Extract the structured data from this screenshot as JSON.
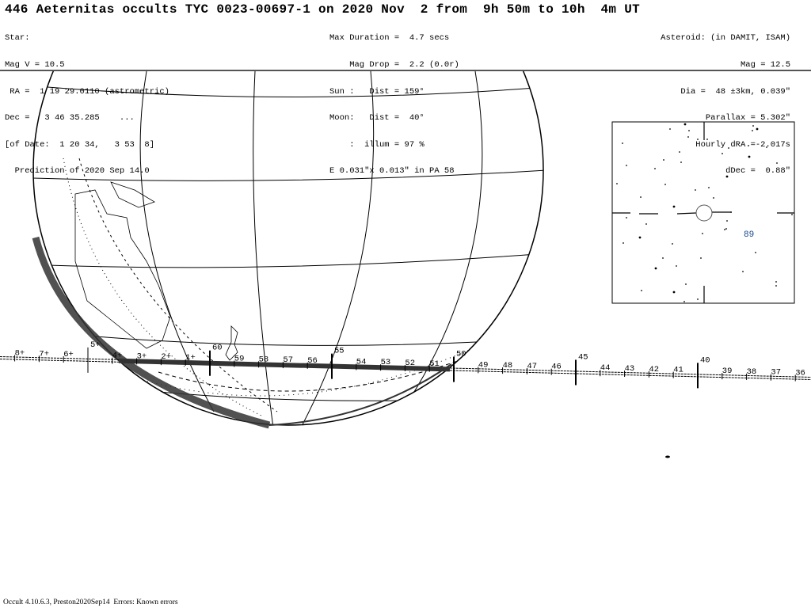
{
  "title": "446 Aeternitas occults TYC 0023-00697-1 on 2020 Nov  2 from  9h 50m to 10h  4m UT",
  "star": [
    "Star:",
    "Mag V = 10.5",
    " RA =  1 19 29.0110 (astrometric)",
    "Dec =   3 46 35.285    ...",
    "[of Date:  1 20 34,   3 53  8]",
    "  Prediction of 2020 Sep 14.0"
  ],
  "event": [
    "Max Duration =  4.7 secs",
    "    Mag Drop =  2.2 (0.0r)",
    "Sun :   Dist = 159°",
    "Moon:   Dist =  40°",
    "    :  illum = 97 %",
    "E 0.031\"x 0.013\" in PA 58"
  ],
  "asteroid": [
    "Asteroid: (in DAMIT, ISAM)",
    "Mag = 12.5",
    "Dia =  48 ±3km, 0.039\"",
    "Parallax = 5.302\"",
    "Hourly dRA =-2.017s",
    "dDec =  0.88\""
  ],
  "track_labels": [
    "8+",
    "7+",
    "6+",
    "5+",
    "4+",
    "3+",
    "2+",
    "1+",
    "60",
    "59",
    "58",
    "57",
    "56",
    "55",
    "54",
    "53",
    "52",
    "51",
    "50",
    "49",
    "48",
    "47",
    "46",
    "45",
    "44",
    "43",
    "42",
    "41",
    "40",
    "39",
    "38",
    "37",
    "36"
  ],
  "track_minutes": [
    68,
    67,
    66,
    65,
    64,
    63,
    62,
    61,
    60,
    59,
    58,
    57,
    56,
    55,
    54,
    53,
    52,
    51,
    50,
    49,
    48,
    47,
    46,
    45,
    44,
    43,
    42,
    41,
    40,
    39,
    38,
    37,
    36
  ],
  "major_ticks": [
    65,
    60,
    55,
    50,
    45,
    40
  ],
  "inset": {
    "label": "89"
  },
  "colors": {
    "ink": "#000000",
    "label_blue": "#1a4a8a",
    "shadow": "#333333"
  },
  "footer": "Occult 4.10.6.3, Preston2020Sep14  Errors: Known errors"
}
